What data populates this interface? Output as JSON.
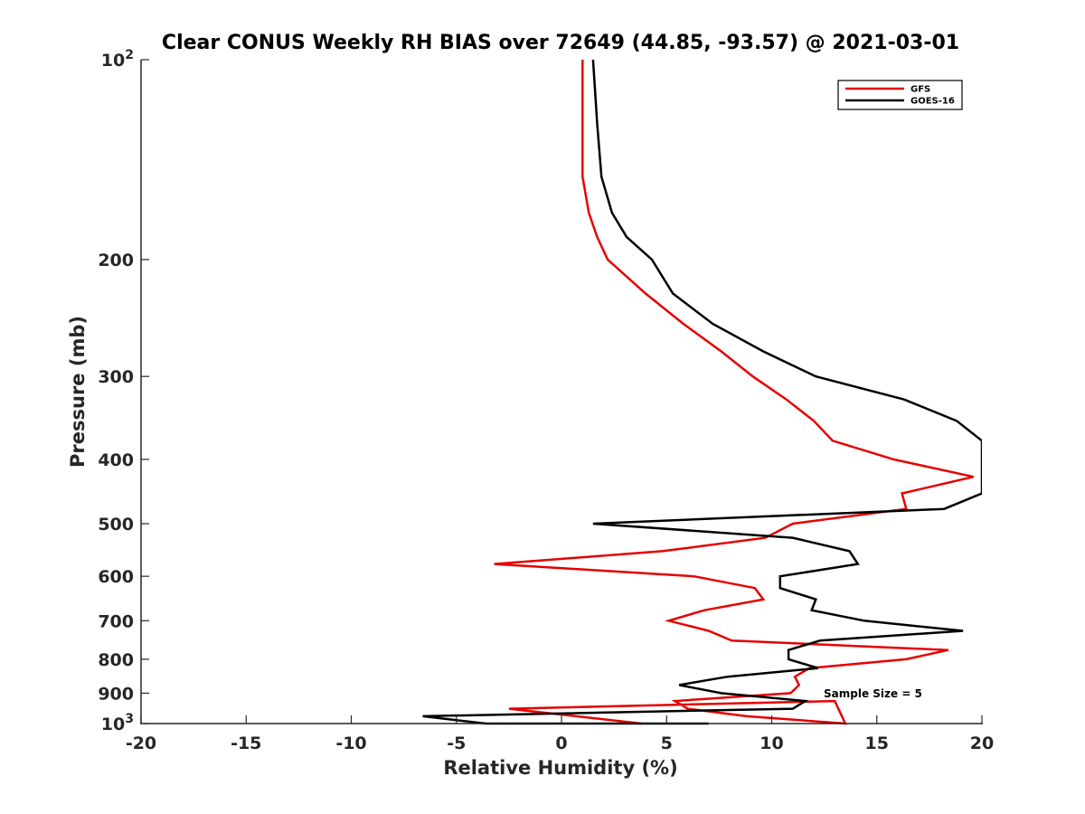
{
  "chart_data": {
    "type": "line",
    "title": "Clear CONUS Weekly RH BIAS over 72649 (44.85, -93.57) @ 2021-03-01",
    "xlabel": "Relative Humidity (%)",
    "ylabel": "Pressure (mb)",
    "xlim": [
      -20,
      20
    ],
    "ylim": [
      100,
      1000
    ],
    "y_scale": "log",
    "y_reversed": true,
    "grid": false,
    "x_ticks": [
      -20,
      -15,
      -10,
      -5,
      0,
      5,
      10,
      15,
      20
    ],
    "y_ticks": [
      {
        "value": 100,
        "base": "10",
        "exp": "2"
      },
      {
        "value": 200,
        "label": "200"
      },
      {
        "value": 300,
        "label": "300"
      },
      {
        "value": 400,
        "label": "400"
      },
      {
        "value": 500,
        "label": "500"
      },
      {
        "value": 600,
        "label": "600"
      },
      {
        "value": 700,
        "label": "700"
      },
      {
        "value": 800,
        "label": "800"
      },
      {
        "value": 900,
        "label": "900"
      },
      {
        "value": 1000,
        "base": "10",
        "exp": "3"
      }
    ],
    "legend_position": "top-right",
    "annotation": "Sample Size = 5",
    "series": [
      {
        "name": "GFS",
        "color": "#e60000",
        "points": [
          [
            1.0,
            100
          ],
          [
            1.0,
            125
          ],
          [
            1.0,
            150
          ],
          [
            1.3,
            170
          ],
          [
            1.7,
            185
          ],
          [
            2.2,
            200
          ],
          [
            4.0,
            225
          ],
          [
            5.8,
            250
          ],
          [
            7.6,
            275
          ],
          [
            9.1,
            300
          ],
          [
            10.7,
            325
          ],
          [
            12.0,
            350
          ],
          [
            12.9,
            375
          ],
          [
            15.8,
            400
          ],
          [
            19.6,
            425
          ],
          [
            16.2,
            450
          ],
          [
            16.4,
            475
          ],
          [
            11.0,
            500
          ],
          [
            9.7,
            525
          ],
          [
            4.8,
            550
          ],
          [
            -3.2,
            575
          ],
          [
            6.3,
            600
          ],
          [
            9.2,
            625
          ],
          [
            9.6,
            650
          ],
          [
            6.8,
            675
          ],
          [
            5.1,
            700
          ],
          [
            7.0,
            725
          ],
          [
            8.1,
            750
          ],
          [
            18.4,
            775
          ],
          [
            16.4,
            800
          ],
          [
            11.8,
            825
          ],
          [
            11.1,
            850
          ],
          [
            11.3,
            875
          ],
          [
            10.9,
            900
          ],
          [
            5.4,
            925
          ],
          [
            6.0,
            950
          ],
          [
            8.8,
            975
          ],
          [
            13.5,
            1000
          ],
          [
            13.0,
            925
          ],
          [
            -2.5,
            950
          ],
          [
            3.8,
            1000
          ]
        ]
      },
      {
        "name": "GOES-16",
        "color": "#000000",
        "points": [
          [
            1.5,
            100
          ],
          [
            1.7,
            125
          ],
          [
            1.9,
            150
          ],
          [
            2.4,
            170
          ],
          [
            3.1,
            185
          ],
          [
            4.3,
            200
          ],
          [
            5.3,
            225
          ],
          [
            7.2,
            250
          ],
          [
            9.6,
            275
          ],
          [
            12.1,
            300
          ],
          [
            16.3,
            325
          ],
          [
            18.8,
            350
          ],
          [
            20.0,
            375
          ],
          [
            20.0,
            450
          ],
          [
            18.2,
            475
          ],
          [
            1.5,
            500
          ],
          [
            11.0,
            525
          ],
          [
            13.7,
            550
          ],
          [
            14.1,
            575
          ],
          [
            10.4,
            600
          ],
          [
            10.4,
            625
          ],
          [
            12.1,
            650
          ],
          [
            11.9,
            675
          ],
          [
            14.4,
            700
          ],
          [
            19.1,
            725
          ],
          [
            12.3,
            750
          ],
          [
            10.8,
            775
          ],
          [
            10.8,
            800
          ],
          [
            12.2,
            825
          ],
          [
            7.9,
            850
          ],
          [
            5.6,
            875
          ],
          [
            7.6,
            900
          ],
          [
            11.6,
            925
          ],
          [
            11.0,
            950
          ],
          [
            -6.6,
            975
          ],
          [
            -3.6,
            1000
          ],
          [
            7.0,
            1000
          ]
        ]
      }
    ]
  }
}
